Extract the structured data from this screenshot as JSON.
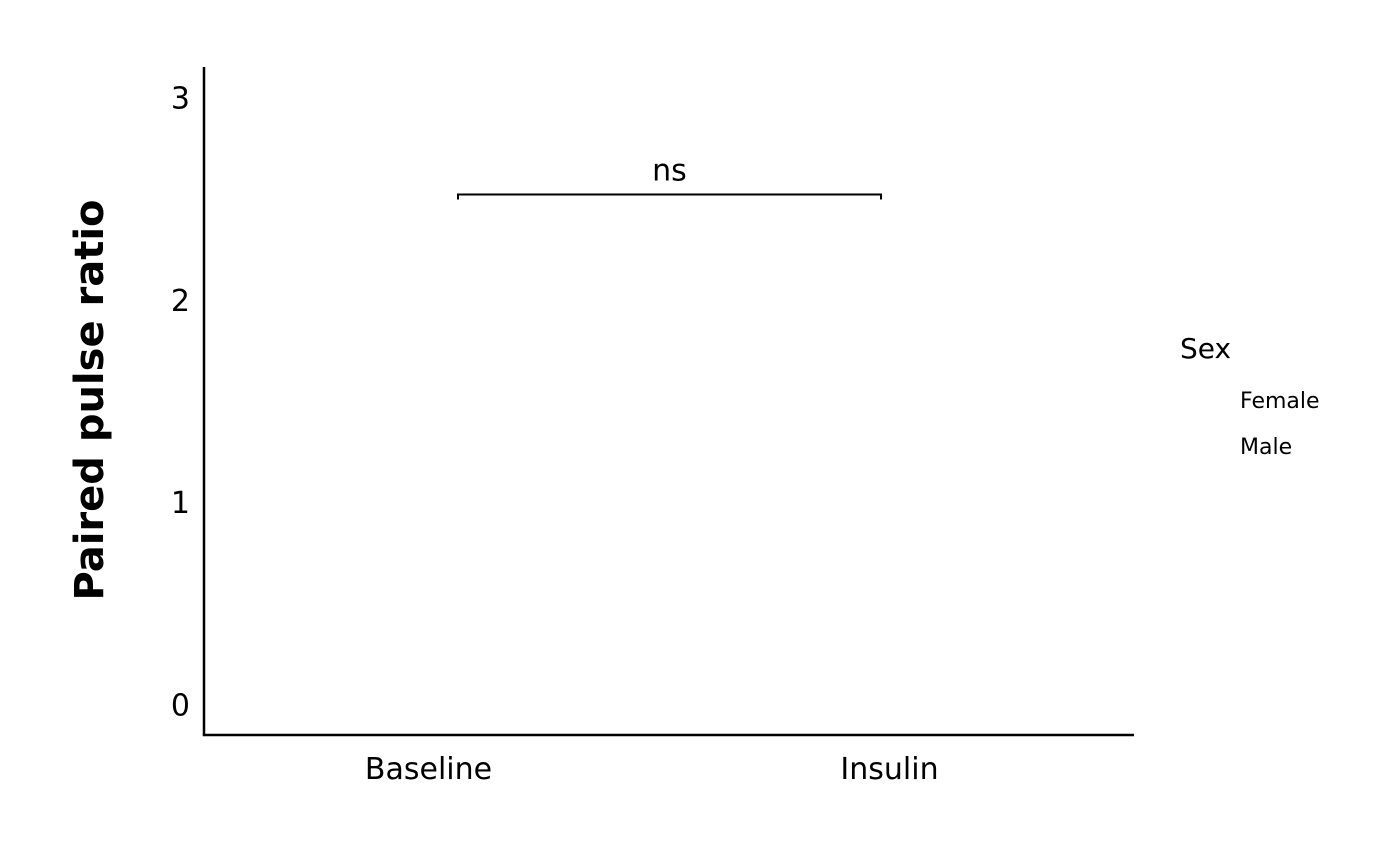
{
  "chart_data": {
    "type": "scatter",
    "categories": [
      "Baseline",
      "Insulin"
    ],
    "ylabel": "Paired pulse ratio",
    "xlabel": "",
    "ylim": [
      -0.15,
      3.15
    ],
    "yticks": [
      0,
      1,
      2,
      3
    ],
    "series": [
      {
        "name": "Female",
        "values": []
      },
      {
        "name": "Male",
        "values": []
      }
    ],
    "annotations": [
      {
        "type": "significance_bracket",
        "from": "Baseline",
        "to": "Insulin",
        "y": 2.52,
        "label": "ns"
      }
    ],
    "legend": {
      "title": "Sex",
      "entries": [
        "Female",
        "Male"
      ],
      "placement": "right"
    },
    "grid": false
  }
}
